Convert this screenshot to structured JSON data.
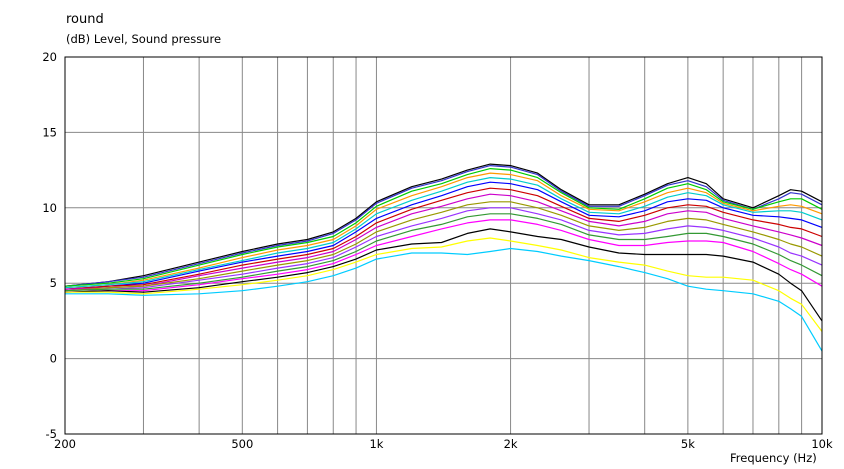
{
  "header": {
    "title": "round",
    "subtitle": "(dB)  Level, Sound pressure"
  },
  "chart_data": {
    "type": "line",
    "title": "round",
    "ylabel": "(dB)  Level, Sound pressure",
    "xlabel": "Frequency  (Hz)",
    "xscale": "log",
    "xlim": [
      200,
      10000
    ],
    "ylim": [
      -5,
      20
    ],
    "grid": true,
    "legend": "none",
    "yticks": [
      {
        "value": -5,
        "label": "-5"
      },
      {
        "value": 0,
        "label": "0"
      },
      {
        "value": 5,
        "label": "5"
      },
      {
        "value": 10,
        "label": "10"
      },
      {
        "value": 15,
        "label": "15"
      },
      {
        "value": 20,
        "label": "20"
      }
    ],
    "xticks": [
      {
        "value": 200,
        "label": "200"
      },
      {
        "value": 500,
        "label": "500"
      },
      {
        "value": 1000,
        "label": "1k"
      },
      {
        "value": 2000,
        "label": "2k"
      },
      {
        "value": 5000,
        "label": "5k"
      },
      {
        "value": 10000,
        "label": "10k"
      }
    ],
    "xgrid": [
      300,
      400,
      600,
      700,
      800,
      900,
      3000,
      4000,
      6000,
      7000,
      8000,
      9000
    ],
    "x": [
      200,
      250,
      300,
      400,
      500,
      600,
      700,
      800,
      900,
      1000,
      1200,
      1400,
      1600,
      1800,
      2000,
      2300,
      2600,
      3000,
      3500,
      4000,
      4500,
      5000,
      5500,
      6000,
      7000,
      8000,
      8500,
      9000,
      10000
    ],
    "series": [
      {
        "color": "#000000",
        "values": [
          4.8,
          5.1,
          5.5,
          6.4,
          7.1,
          7.6,
          7.9,
          8.4,
          9.3,
          10.4,
          11.4,
          11.9,
          12.5,
          12.9,
          12.8,
          12.3,
          11.2,
          10.2,
          10.2,
          10.9,
          11.6,
          12.0,
          11.6,
          10.6,
          10.0,
          10.8,
          11.2,
          11.1,
          10.4
        ]
      },
      {
        "color": "#3333cc",
        "values": [
          4.8,
          5.1,
          5.4,
          6.3,
          7.0,
          7.5,
          7.8,
          8.3,
          9.2,
          10.3,
          11.3,
          11.8,
          12.4,
          12.8,
          12.7,
          12.2,
          11.1,
          10.1,
          10.1,
          10.8,
          11.5,
          11.8,
          11.4,
          10.5,
          9.9,
          10.6,
          11.0,
          10.9,
          10.2
        ]
      },
      {
        "color": "#00cc00",
        "values": [
          4.8,
          5.0,
          5.3,
          6.2,
          6.9,
          7.4,
          7.7,
          8.1,
          9.0,
          10.1,
          11.1,
          11.6,
          12.2,
          12.6,
          12.5,
          12.0,
          11.0,
          10.0,
          9.9,
          10.6,
          11.3,
          11.6,
          11.2,
          10.4,
          9.9,
          10.4,
          10.6,
          10.6,
          9.9
        ]
      },
      {
        "color": "#ff9900",
        "values": [
          4.7,
          4.9,
          5.2,
          6.0,
          6.7,
          7.2,
          7.5,
          7.9,
          8.8,
          9.9,
          10.8,
          11.4,
          12.0,
          12.3,
          12.2,
          11.8,
          10.8,
          9.9,
          9.8,
          10.4,
          11.0,
          11.3,
          11.0,
          10.3,
          9.8,
          10.1,
          10.2,
          10.1,
          9.6
        ]
      },
      {
        "color": "#00cccc",
        "values": [
          4.7,
          4.9,
          5.1,
          5.9,
          6.5,
          7.0,
          7.3,
          7.7,
          8.6,
          9.6,
          10.5,
          11.1,
          11.7,
          12.0,
          11.9,
          11.5,
          10.6,
          9.7,
          9.6,
          10.1,
          10.7,
          11.0,
          10.8,
          10.2,
          9.7,
          9.8,
          9.8,
          9.7,
          9.2
        ]
      },
      {
        "color": "#0000ff",
        "values": [
          4.6,
          4.8,
          5.0,
          5.8,
          6.4,
          6.8,
          7.1,
          7.5,
          8.4,
          9.3,
          10.2,
          10.8,
          11.4,
          11.7,
          11.6,
          11.2,
          10.4,
          9.5,
          9.4,
          9.8,
          10.4,
          10.6,
          10.5,
          10.0,
          9.5,
          9.4,
          9.3,
          9.2,
          8.7
        ]
      },
      {
        "color": "#cc0000",
        "values": [
          4.6,
          4.8,
          4.9,
          5.6,
          6.2,
          6.6,
          6.9,
          7.3,
          8.1,
          9.0,
          9.9,
          10.5,
          11.0,
          11.3,
          11.2,
          10.8,
          10.1,
          9.3,
          9.1,
          9.5,
          10.0,
          10.2,
          10.1,
          9.7,
          9.2,
          8.9,
          8.7,
          8.6,
          8.1
        ]
      },
      {
        "color": "#cc00cc",
        "values": [
          4.6,
          4.7,
          4.8,
          5.5,
          6.0,
          6.4,
          6.7,
          7.1,
          7.9,
          8.7,
          9.6,
          10.1,
          10.6,
          10.9,
          10.8,
          10.4,
          9.8,
          9.1,
          8.8,
          9.1,
          9.6,
          9.8,
          9.7,
          9.3,
          8.8,
          8.4,
          8.2,
          8.0,
          7.5
        ]
      },
      {
        "color": "#999900",
        "values": [
          4.5,
          4.7,
          4.8,
          5.3,
          5.8,
          6.2,
          6.5,
          6.9,
          7.6,
          8.4,
          9.2,
          9.7,
          10.2,
          10.4,
          10.4,
          10.0,
          9.5,
          8.8,
          8.5,
          8.7,
          9.1,
          9.3,
          9.2,
          8.9,
          8.4,
          7.9,
          7.6,
          7.4,
          6.8
        ]
      },
      {
        "color": "#9933ff",
        "values": [
          4.5,
          4.6,
          4.7,
          5.2,
          5.6,
          6.0,
          6.3,
          6.7,
          7.4,
          8.1,
          8.8,
          9.3,
          9.8,
          10.0,
          10.0,
          9.6,
          9.2,
          8.5,
          8.2,
          8.3,
          8.6,
          8.8,
          8.7,
          8.5,
          8.0,
          7.4,
          7.0,
          6.8,
          6.2
        ]
      },
      {
        "color": "#339933",
        "values": [
          4.5,
          4.6,
          4.6,
          5.0,
          5.4,
          5.8,
          6.1,
          6.5,
          7.1,
          7.8,
          8.5,
          8.9,
          9.4,
          9.6,
          9.6,
          9.3,
          8.9,
          8.2,
          7.9,
          7.9,
          8.1,
          8.3,
          8.3,
          8.1,
          7.6,
          6.9,
          6.5,
          6.2,
          5.5
        ]
      },
      {
        "color": "#ff00ff",
        "values": [
          4.4,
          4.5,
          4.5,
          4.9,
          5.3,
          5.6,
          5.9,
          6.3,
          6.9,
          7.5,
          8.1,
          8.6,
          9.0,
          9.2,
          9.2,
          8.9,
          8.5,
          7.9,
          7.5,
          7.5,
          7.7,
          7.8,
          7.8,
          7.7,
          7.1,
          6.3,
          5.9,
          5.6,
          4.8
        ]
      },
      {
        "color": "#000000",
        "values": [
          4.4,
          4.5,
          4.4,
          4.7,
          5.1,
          5.4,
          5.7,
          6.1,
          6.6,
          7.2,
          7.6,
          7.7,
          8.3,
          8.6,
          8.4,
          8.1,
          7.9,
          7.4,
          7.0,
          6.9,
          6.9,
          6.9,
          6.9,
          6.8,
          6.4,
          5.6,
          5.0,
          4.5,
          2.5
        ]
      },
      {
        "color": "#ffff00",
        "values": [
          4.4,
          4.4,
          4.3,
          4.6,
          4.9,
          5.2,
          5.5,
          5.9,
          6.4,
          6.9,
          7.3,
          7.4,
          7.8,
          8.0,
          7.8,
          7.5,
          7.2,
          6.7,
          6.4,
          6.2,
          5.8,
          5.5,
          5.4,
          5.4,
          5.2,
          4.5,
          4.0,
          3.6,
          1.8
        ]
      },
      {
        "color": "#00ccff",
        "values": [
          4.3,
          4.3,
          4.2,
          4.3,
          4.5,
          4.8,
          5.1,
          5.5,
          6.0,
          6.6,
          7.0,
          7.0,
          6.9,
          7.1,
          7.3,
          7.1,
          6.8,
          6.5,
          6.1,
          5.7,
          5.3,
          4.8,
          4.6,
          4.5,
          4.3,
          3.8,
          3.3,
          2.8,
          0.5
        ]
      }
    ]
  }
}
